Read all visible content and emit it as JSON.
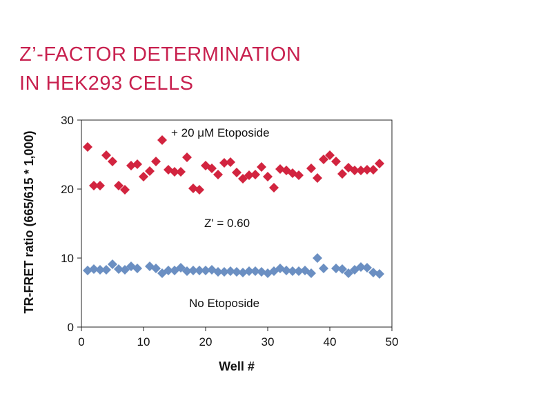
{
  "title_lines": [
    "Z’-FACTOR DETERMINATION",
    "IN HEK293 CELLS"
  ],
  "colors": {
    "title": "#c8214f",
    "etoposide_series": "#d2243f",
    "control_series": "#6b8fc2",
    "axis": "#222222"
  },
  "chart_data": {
    "type": "scatter",
    "title": "",
    "xlabel": "Well #",
    "ylabel": "TR-FRET ratio (665/615 * 1,000)",
    "xlim": [
      0,
      50
    ],
    "ylim": [
      0,
      30
    ],
    "xticks": [
      0,
      10,
      20,
      30,
      40,
      50
    ],
    "yticks": [
      0,
      10,
      20,
      30
    ],
    "grid": false,
    "marker": "diamond",
    "annotations": {
      "etoposide": "+ 20 μM Etoposide",
      "zprime": "Z' = 0.60",
      "control": "No Etoposide"
    },
    "series": [
      {
        "color": "#d2243f",
        "x": [
          1,
          2,
          3,
          4,
          5,
          6,
          7,
          8,
          9,
          10,
          11,
          12,
          13,
          14,
          15,
          16,
          17,
          18,
          19,
          20,
          21,
          22,
          23,
          24,
          25,
          26,
          27,
          28,
          29,
          30,
          31,
          32,
          33,
          34,
          35,
          37,
          38,
          39,
          40,
          41,
          42,
          43,
          44,
          45,
          46,
          47,
          48
        ],
        "y": [
          26.1,
          20.5,
          20.5,
          24.9,
          24.0,
          20.5,
          19.9,
          23.4,
          23.6,
          21.8,
          22.6,
          24.0,
          27.1,
          22.8,
          22.5,
          22.5,
          24.6,
          20.1,
          19.9,
          23.4,
          23.0,
          22.1,
          23.8,
          23.9,
          22.4,
          21.5,
          22.0,
          22.1,
          23.2,
          21.8,
          20.2,
          22.9,
          22.7,
          22.3,
          22.0,
          23.0,
          21.6,
          24.3,
          24.9,
          24.0,
          22.2,
          23.1,
          22.7,
          22.7,
          22.8,
          22.8,
          23.7
        ]
      },
      {
        "color": "#6b8fc2",
        "x": [
          1,
          2,
          3,
          4,
          5,
          6,
          7,
          8,
          9,
          11,
          12,
          13,
          14,
          15,
          16,
          17,
          18,
          19,
          20,
          21,
          22,
          23,
          24,
          25,
          26,
          27,
          28,
          29,
          30,
          31,
          32,
          33,
          34,
          35,
          36,
          37,
          38,
          39,
          41,
          42,
          43,
          44,
          45,
          46,
          47,
          48
        ],
        "y": [
          8.2,
          8.4,
          8.3,
          8.3,
          9.1,
          8.4,
          8.3,
          8.8,
          8.5,
          8.8,
          8.5,
          7.8,
          8.2,
          8.2,
          8.6,
          8.1,
          8.2,
          8.2,
          8.2,
          8.3,
          8.0,
          8.0,
          8.1,
          8.0,
          7.9,
          8.1,
          8.1,
          8.0,
          7.8,
          8.1,
          8.5,
          8.2,
          8.1,
          8.1,
          8.2,
          7.8,
          10.0,
          8.5,
          8.5,
          8.4,
          7.8,
          8.3,
          8.7,
          8.6,
          7.9,
          7.7
        ]
      }
    ]
  }
}
